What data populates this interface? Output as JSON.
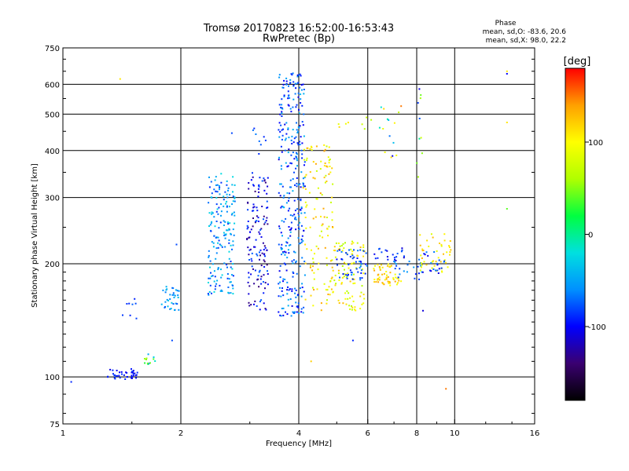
{
  "chart_data": {
    "type": "scatter",
    "title": "Tromsø 20170823 16:52:00-16:53:43",
    "subtitle": "RwPretec (Bp)",
    "xlabel": "Frequency [MHz]",
    "ylabel": "Stationary phase Virtual Height [km]",
    "x_scale": "log",
    "y_scale": "log",
    "xlim": [
      1,
      16
    ],
    "ylim": [
      75,
      750
    ],
    "x_ticks": [
      1,
      2,
      4,
      6,
      8,
      10,
      16
    ],
    "x_tick_labels": [
      "1",
      "2",
      "4",
      "6",
      "8",
      "10",
      "16"
    ],
    "y_ticks": [
      75,
      100,
      200,
      300,
      400,
      500,
      600,
      750
    ],
    "y_tick_labels": [
      "75",
      "100",
      "200",
      "300",
      "400",
      "500",
      "600",
      "750"
    ],
    "grid": true,
    "phase_stats": {
      "header": "Phase",
      "line_o": "mean, sd,O: -83.6, 20.6",
      "line_x": "mean, sd,X:  98.0, 22.2"
    },
    "colorbar": {
      "label": "[deg]",
      "ticks": [
        100,
        0,
        -100
      ],
      "tick_labels": [
        "100",
        "0",
        "-100"
      ],
      "range": [
        -180,
        180
      ],
      "colors": [
        "#000000",
        "#3a0070",
        "#0000ff",
        "#0090ff",
        "#00e0e0",
        "#00ff40",
        "#b0ff00",
        "#ffff00",
        "#ffa000",
        "#ff0000"
      ]
    },
    "clusters": [
      {
        "x": [
          1.3,
          1.55
        ],
        "y": [
          98,
          105
        ],
        "n": 40,
        "phase": [
          -110,
          -80
        ]
      },
      {
        "x": [
          1.42,
          1.6
        ],
        "y": [
          140,
          165
        ],
        "n": 8,
        "phase": [
          -100,
          -70
        ]
      },
      {
        "x": [
          1.6,
          1.75
        ],
        "y": [
          108,
          115
        ],
        "n": 12,
        "phase": [
          -80,
          60
        ]
      },
      {
        "x": [
          1.78,
          1.98
        ],
        "y": [
          150,
          175
        ],
        "n": 35,
        "phase": [
          -80,
          -30
        ]
      },
      {
        "x": [
          2.35,
          2.75
        ],
        "y": [
          165,
          350
        ],
        "n": 180,
        "phase": [
          -90,
          -20
        ]
      },
      {
        "x": [
          2.95,
          3.35
        ],
        "y": [
          150,
          350
        ],
        "n": 140,
        "phase": [
          -140,
          -70
        ]
      },
      {
        "x": [
          3.55,
          4.15
        ],
        "y": [
          145,
          650
        ],
        "n": 330,
        "phase": [
          -110,
          -40
        ]
      },
      {
        "x": [
          4.1,
          4.9
        ],
        "y": [
          150,
          420
        ],
        "n": 120,
        "phase": [
          70,
          140
        ]
      },
      {
        "x": [
          4.8,
          5.9
        ],
        "y": [
          150,
          230
        ],
        "n": 100,
        "phase": [
          60,
          130
        ]
      },
      {
        "x": [
          5.0,
          6.0
        ],
        "y": [
          180,
          220
        ],
        "n": 50,
        "phase": [
          -100,
          -60
        ]
      },
      {
        "x": [
          6.2,
          7.3
        ],
        "y": [
          175,
          200
        ],
        "n": 55,
        "phase": [
          90,
          140
        ]
      },
      {
        "x": [
          6.2,
          7.5
        ],
        "y": [
          200,
          220
        ],
        "n": 18,
        "phase": [
          -120,
          -70
        ]
      },
      {
        "x": [
          7.0,
          8.3
        ],
        "y": [
          180,
          215
        ],
        "n": 25,
        "phase": [
          -100,
          -50
        ]
      },
      {
        "x": [
          8.0,
          9.8
        ],
        "y": [
          190,
          240
        ],
        "n": 45,
        "phase": [
          80,
          130
        ]
      },
      {
        "x": [
          8.2,
          9.5
        ],
        "y": [
          185,
          215
        ],
        "n": 20,
        "phase": [
          -110,
          -60
        ]
      },
      {
        "x": [
          6.4,
          7.2
        ],
        "y": [
          380,
          540
        ],
        "n": 14,
        "phase": [
          -120,
          140
        ]
      },
      {
        "x": [
          5.0,
          6.2
        ],
        "y": [
          450,
          490
        ],
        "n": 8,
        "phase": [
          60,
          120
        ]
      },
      {
        "x": [
          3.0,
          3.3
        ],
        "y": [
          390,
          460
        ],
        "n": 8,
        "phase": [
          -100,
          -60
        ]
      },
      {
        "x": [
          8.0,
          8.3
        ],
        "y": [
          300,
          590
        ],
        "n": 10,
        "phase": [
          -120,
          150
        ]
      }
    ],
    "points": [
      {
        "x": 1.05,
        "y": 97,
        "phase": -90
      },
      {
        "x": 1.4,
        "y": 620,
        "phase": 110
      },
      {
        "x": 1.9,
        "y": 125,
        "phase": -80
      },
      {
        "x": 1.95,
        "y": 225,
        "phase": -80
      },
      {
        "x": 2.7,
        "y": 445,
        "phase": -80
      },
      {
        "x": 4.3,
        "y": 110,
        "phase": 120
      },
      {
        "x": 5.5,
        "y": 125,
        "phase": -90
      },
      {
        "x": 9.5,
        "y": 93,
        "phase": 150
      },
      {
        "x": 13.6,
        "y": 640,
        "phase": -100
      },
      {
        "x": 13.6,
        "y": 650,
        "phase": 110
      },
      {
        "x": 13.6,
        "y": 475,
        "phase": 110
      },
      {
        "x": 13.6,
        "y": 280,
        "phase": 40
      },
      {
        "x": 8.3,
        "y": 150,
        "phase": -110
      },
      {
        "x": 7.3,
        "y": 525,
        "phase": 150
      }
    ]
  }
}
